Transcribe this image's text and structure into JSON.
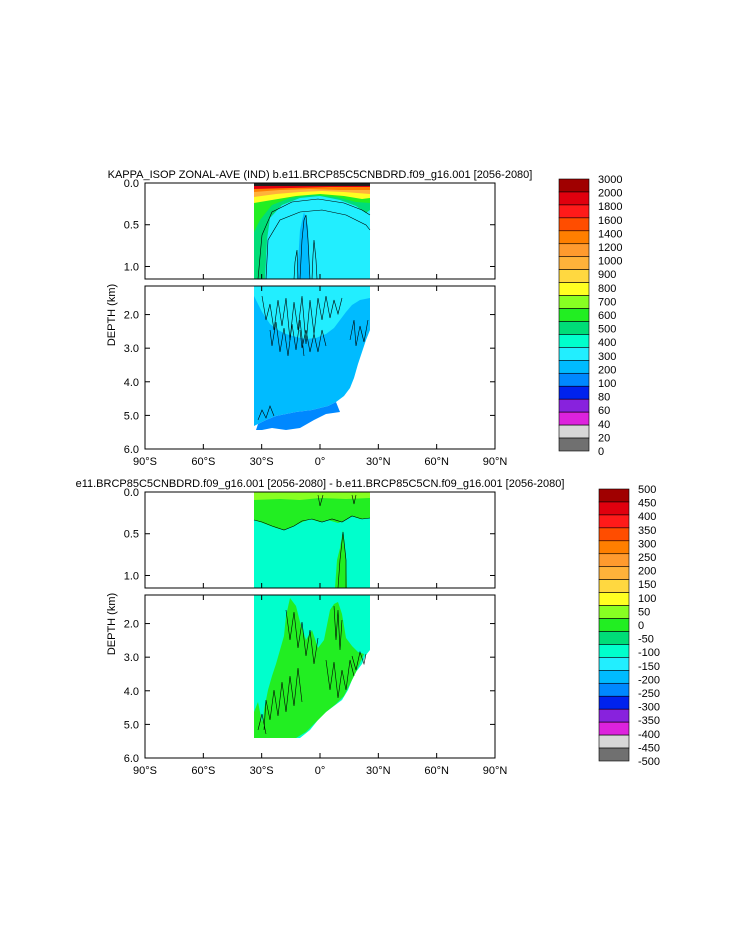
{
  "chart_data": [
    {
      "type": "heatmap",
      "title": "KAPPA_ISOP ZONAL-AVE (IND) b.e11.BRCP85C5CNBDRD.f09_g16.001 [2056-2080]",
      "ylabel": "DEPTH (km)",
      "xlabel": "",
      "xlim": [
        -90,
        90
      ],
      "ylim_upper": [
        0.0,
        1.15
      ],
      "ylim_lower": [
        1.15,
        6.0
      ],
      "x_ticks": [
        "90°S",
        "60°S",
        "30°S",
        "0°",
        "30°N",
        "60°N",
        "90°N"
      ],
      "y_ticks_upper": [
        "0.0",
        "0.5",
        "1.0"
      ],
      "y_ticks_lower": [
        "2.0",
        "3.0",
        "4.0",
        "5.0",
        "6.0"
      ],
      "data_extent_lat": [
        -34,
        25
      ],
      "colorbar": {
        "levels": [
          "3000",
          "2000",
          "1800",
          "1600",
          "1400",
          "1200",
          "1000",
          "900",
          "800",
          "700",
          "600",
          "500",
          "400",
          "300",
          "200",
          "100",
          "80",
          "60",
          "40",
          "20",
          "0"
        ],
        "colors": [
          "#a00000",
          "#e0000e",
          "#ff1a1a",
          "#ff4d00",
          "#ff7f00",
          "#ff9a2e",
          "#ffb23a",
          "#ffd840",
          "#ffff22",
          "#88ff22",
          "#22ee22",
          "#00dd77",
          "#00ffcc",
          "#22eeff",
          "#00bbff",
          "#0088ff",
          "#0022ee",
          "#8822dd",
          "#dd22dd",
          "#d8d8d8",
          "#707070"
        ]
      }
    },
    {
      "type": "heatmap",
      "title": "e11.BRCP85C5CNBDRD.f09_g16.001 [2056-2080] - b.e11.BRCP85C5CN.f09_g16.001 [2056-2080]",
      "ylabel": "DEPTH (km)",
      "xlabel": "",
      "xlim": [
        -90,
        90
      ],
      "ylim_upper": [
        0.0,
        1.15
      ],
      "ylim_lower": [
        1.15,
        6.0
      ],
      "x_ticks": [
        "90°S",
        "60°S",
        "30°S",
        "0°",
        "30°N",
        "60°N",
        "90°N"
      ],
      "y_ticks_upper": [
        "0.0",
        "0.5",
        "1.0"
      ],
      "y_ticks_lower": [
        "2.0",
        "3.0",
        "4.0",
        "5.0",
        "6.0"
      ],
      "data_extent_lat": [
        -34,
        25
      ],
      "colorbar": {
        "levels": [
          "500",
          "450",
          "400",
          "350",
          "300",
          "250",
          "200",
          "150",
          "100",
          "50",
          "0",
          "-50",
          "-100",
          "-150",
          "-200",
          "-250",
          "-300",
          "-350",
          "-400",
          "-450",
          "-500"
        ],
        "colors": [
          "#a00000",
          "#e0000e",
          "#ff1a1a",
          "#ff4d00",
          "#ff7f00",
          "#ff9a2e",
          "#ffb23a",
          "#ffd840",
          "#ffff22",
          "#88ff22",
          "#22ee22",
          "#00dd77",
          "#00ffcc",
          "#22eeff",
          "#00bbff",
          "#0088ff",
          "#0022ee",
          "#8822dd",
          "#dd22dd",
          "#d8d8d8",
          "#707070"
        ]
      }
    }
  ]
}
